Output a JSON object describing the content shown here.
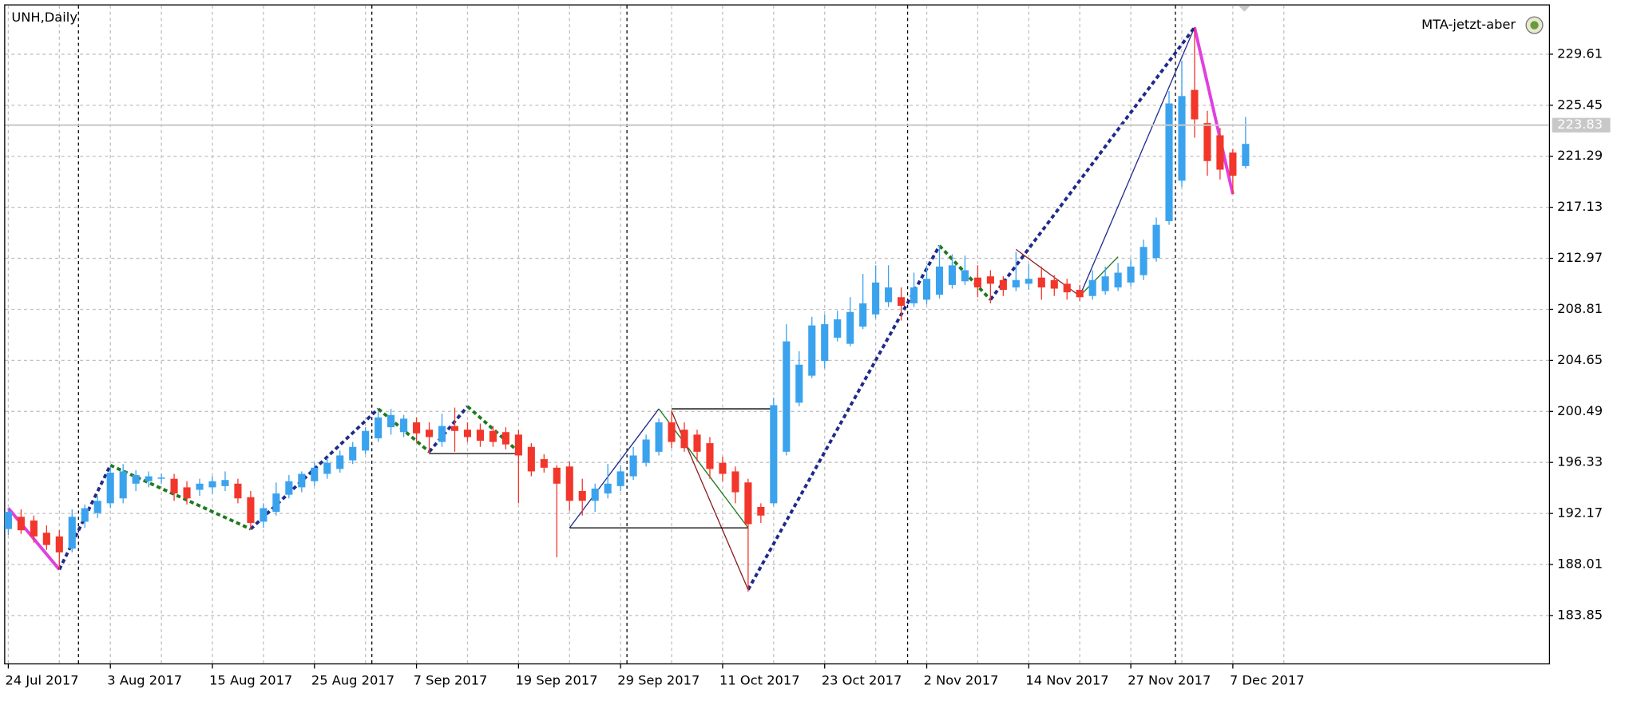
{
  "chart_data": {
    "type": "candlestick",
    "title": "UNH,Daily",
    "indicator": "MTA-jetzt-aber",
    "x": [
      "2017-07-24",
      "2017-07-25",
      "2017-07-26",
      "2017-07-27",
      "2017-07-28",
      "2017-07-31",
      "2017-08-01",
      "2017-08-02",
      "2017-08-03",
      "2017-08-04",
      "2017-08-07",
      "2017-08-08",
      "2017-08-09",
      "2017-08-10",
      "2017-08-11",
      "2017-08-14",
      "2017-08-15",
      "2017-08-16",
      "2017-08-17",
      "2017-08-18",
      "2017-08-21",
      "2017-08-22",
      "2017-08-23",
      "2017-08-24",
      "2017-08-25",
      "2017-08-28",
      "2017-08-29",
      "2017-08-30",
      "2017-08-31",
      "2017-09-01",
      "2017-09-05",
      "2017-09-06",
      "2017-09-07",
      "2017-09-08",
      "2017-09-11",
      "2017-09-12",
      "2017-09-13",
      "2017-09-14",
      "2017-09-15",
      "2017-09-18",
      "2017-09-19",
      "2017-09-20",
      "2017-09-21",
      "2017-09-22",
      "2017-09-25",
      "2017-09-26",
      "2017-09-27",
      "2017-09-28",
      "2017-09-29",
      "2017-10-02",
      "2017-10-03",
      "2017-10-04",
      "2017-10-05",
      "2017-10-06",
      "2017-10-09",
      "2017-10-10",
      "2017-10-11",
      "2017-10-12",
      "2017-10-13",
      "2017-10-16",
      "2017-10-17",
      "2017-10-18",
      "2017-10-19",
      "2017-10-20",
      "2017-10-23",
      "2017-10-24",
      "2017-10-25",
      "2017-10-26",
      "2017-10-27",
      "2017-10-30",
      "2017-10-31",
      "2017-11-01",
      "2017-11-02",
      "2017-11-03",
      "2017-11-06",
      "2017-11-07",
      "2017-11-08",
      "2017-11-09",
      "2017-11-10",
      "2017-11-13",
      "2017-11-14",
      "2017-11-15",
      "2017-11-16",
      "2017-11-17",
      "2017-11-20",
      "2017-11-21",
      "2017-11-22",
      "2017-11-24",
      "2017-11-27",
      "2017-11-28",
      "2017-11-29",
      "2017-11-30",
      "2017-12-01",
      "2017-12-04",
      "2017-12-05",
      "2017-12-06",
      "2017-12-07",
      "2017-12-08"
    ],
    "open": [
      190.9,
      191.9,
      191.6,
      190.6,
      190.3,
      189.3,
      191.5,
      192.2,
      193.0,
      193.4,
      194.6,
      194.8,
      195.0,
      195.0,
      194.3,
      194.1,
      194.3,
      194.4,
      194.6,
      193.5,
      191.5,
      192.3,
      193.7,
      194.3,
      194.8,
      195.4,
      195.8,
      196.5,
      197.3,
      198.3,
      199.2,
      198.8,
      199.6,
      199.0,
      198.0,
      199.3,
      199.0,
      199.0,
      198.9,
      198.8,
      198.6,
      197.6,
      196.6,
      195.9,
      196.0,
      194.0,
      193.2,
      193.8,
      194.4,
      195.2,
      196.3,
      197.2,
      199.6,
      199.0,
      198.6,
      197.9,
      196.3,
      195.6,
      194.7,
      192.7,
      193.0,
      197.2,
      201.2,
      203.4,
      204.6,
      206.5,
      206.0,
      207.4,
      208.4,
      209.4,
      209.8,
      209.3,
      209.6,
      210.0,
      210.8,
      211.1,
      211.4,
      211.5,
      211.2,
      210.6,
      210.9,
      211.4,
      211.2,
      210.9,
      210.4,
      209.9,
      210.3,
      210.6,
      211.0,
      211.6,
      213.0,
      216.0,
      219.3,
      226.7,
      224.0,
      223.0,
      221.6,
      220.5
    ],
    "high": [
      192.6,
      192.5,
      192.0,
      191.2,
      190.8,
      192.5,
      192.9,
      193.6,
      196.0,
      196.2,
      195.7,
      195.6,
      195.4,
      195.4,
      194.8,
      195.0,
      195.2,
      195.6,
      195.0,
      194.0,
      193.0,
      194.7,
      195.3,
      195.6,
      196.3,
      196.7,
      197.3,
      198.0,
      199.2,
      200.5,
      200.7,
      200.2,
      200.0,
      199.6,
      200.3,
      200.8,
      199.6,
      199.5,
      199.3,
      199.2,
      199.0,
      197.9,
      197.0,
      196.1,
      196.4,
      195.0,
      194.6,
      196.2,
      196.1,
      197.6,
      198.6,
      199.9,
      200.6,
      199.6,
      199.0,
      198.4,
      196.8,
      196.0,
      195.0,
      193.0,
      201.6,
      207.6,
      205.4,
      208.2,
      208.4,
      208.7,
      209.8,
      211.7,
      212.4,
      212.4,
      210.6,
      211.8,
      212.4,
      214.0,
      213.3,
      213.2,
      212.4,
      212.0,
      211.5,
      213.5,
      212.5,
      212.3,
      211.6,
      211.3,
      210.8,
      212.0,
      212.3,
      212.6,
      212.9,
      214.5,
      216.3,
      226.6,
      229.1,
      231.8,
      225.0,
      223.6,
      221.9,
      224.5
    ],
    "low": [
      190.4,
      190.5,
      189.8,
      189.2,
      187.6,
      189.0,
      191.0,
      191.8,
      192.6,
      193.0,
      194.0,
      194.3,
      194.6,
      193.2,
      192.9,
      193.6,
      193.8,
      194.0,
      193.0,
      190.9,
      191.0,
      192.0,
      193.4,
      193.9,
      194.4,
      195.0,
      195.5,
      196.2,
      197.0,
      198.0,
      198.6,
      198.4,
      198.0,
      197.0,
      197.6,
      197.2,
      198.0,
      197.6,
      197.6,
      197.4,
      193.0,
      195.2,
      195.5,
      188.6,
      192.4,
      192.0,
      192.3,
      193.4,
      194.0,
      194.9,
      196.0,
      196.9,
      197.5,
      197.2,
      196.4,
      195.0,
      194.8,
      193.0,
      185.8,
      191.4,
      192.8,
      196.9,
      200.9,
      203.2,
      204.0,
      206.2,
      205.8,
      207.2,
      208.1,
      209.0,
      207.9,
      209.0,
      209.2,
      209.7,
      210.5,
      210.8,
      209.8,
      209.3,
      209.9,
      210.3,
      210.4,
      209.6,
      209.9,
      209.6,
      209.5,
      209.6,
      210.0,
      210.3,
      210.7,
      211.2,
      212.7,
      215.7,
      218.8,
      222.8,
      219.7,
      219.4,
      218.2,
      220.3
    ],
    "close": [
      192.3,
      190.8,
      190.3,
      189.6,
      189.0,
      191.9,
      192.6,
      193.2,
      195.5,
      195.6,
      195.3,
      195.2,
      195.1,
      193.8,
      193.4,
      194.6,
      194.8,
      194.9,
      193.4,
      191.4,
      192.6,
      193.8,
      194.8,
      195.4,
      195.9,
      196.3,
      196.9,
      197.6,
      198.9,
      200.0,
      200.2,
      199.9,
      198.7,
      198.4,
      199.3,
      198.9,
      198.4,
      198.1,
      198.0,
      197.8,
      196.9,
      195.6,
      195.9,
      194.6,
      193.2,
      193.2,
      194.2,
      194.6,
      195.6,
      196.9,
      198.2,
      199.6,
      198.0,
      197.5,
      197.2,
      195.8,
      195.4,
      193.9,
      191.3,
      192.0,
      201.0,
      206.2,
      204.3,
      207.5,
      207.6,
      208.0,
      208.6,
      209.3,
      211.0,
      210.6,
      209.1,
      210.6,
      211.3,
      212.3,
      212.4,
      212.0,
      210.6,
      210.9,
      210.4,
      211.2,
      211.3,
      210.6,
      210.5,
      210.2,
      209.8,
      211.2,
      211.5,
      211.8,
      212.3,
      213.9,
      215.7,
      225.6,
      226.2,
      224.3,
      220.9,
      220.2,
      219.7,
      222.3
    ],
    "up_color": "#3ba3ee",
    "down_color": "#f2362b",
    "ylim": [
      179.95,
      233.59
    ],
    "yticks": [
      183.85,
      188.01,
      192.17,
      196.33,
      200.49,
      204.65,
      208.81,
      212.97,
      217.13,
      221.29,
      225.45,
      229.61
    ],
    "xticks": [
      {
        "value": "2017-07-24",
        "label": "24 Jul 2017"
      },
      {
        "value": "2017-08-03",
        "label": "3 Aug 2017"
      },
      {
        "value": "2017-08-15",
        "label": "15 Aug 2017"
      },
      {
        "value": "2017-08-25",
        "label": "25 Aug 2017"
      },
      {
        "value": "2017-09-07",
        "label": "7 Sep 2017"
      },
      {
        "value": "2017-09-19",
        "label": "19 Sep 2017"
      },
      {
        "value": "2017-09-29",
        "label": "29 Sep 2017"
      },
      {
        "value": "2017-10-11",
        "label": "11 Oct 2017"
      },
      {
        "value": "2017-10-23",
        "label": "23 Oct 2017"
      },
      {
        "value": "2017-11-02",
        "label": "2 Nov 2017"
      },
      {
        "value": "2017-11-14",
        "label": "14 Nov 2017"
      },
      {
        "value": "2017-11-27",
        "label": "27 Nov 2017"
      },
      {
        "value": "2017-12-07",
        "label": "7 Dec 2017"
      }
    ],
    "bid": 223.83,
    "bid_color": "#c8c8c8",
    "grid": true,
    "overlays": [
      {
        "color": "#e040e0",
        "width": 3,
        "dash": "none",
        "points": [
          [
            "2017-07-24",
            192.6
          ],
          [
            "2017-07-28",
            187.6
          ]
        ]
      },
      {
        "color": "#e040e0",
        "width": 3,
        "dash": "none",
        "points": [
          [
            "2017-12-04",
            231.8
          ],
          [
            "2017-12-07",
            218.2
          ]
        ]
      },
      {
        "color": "#1f2a8c",
        "width": 3,
        "dash": "4 3",
        "points": [
          [
            "2017-07-28",
            187.6
          ],
          [
            "2017-08-03",
            196.1
          ]
        ]
      },
      {
        "color": "#1e7a1e",
        "width": 3,
        "dash": "4 3",
        "points": [
          [
            "2017-08-03",
            196.1
          ],
          [
            "2017-08-18",
            190.9
          ]
        ]
      },
      {
        "color": "#1f2a8c",
        "width": 3,
        "dash": "4 3",
        "points": [
          [
            "2017-08-18",
            190.9
          ],
          [
            "2017-09-01",
            200.7
          ]
        ]
      },
      {
        "color": "#1e7a1e",
        "width": 3,
        "dash": "4 3",
        "points": [
          [
            "2017-09-01",
            200.7
          ],
          [
            "2017-09-08",
            197.2
          ]
        ]
      },
      {
        "color": "#1f2a8c",
        "width": 3,
        "dash": "4 3",
        "points": [
          [
            "2017-09-08",
            197.2
          ],
          [
            "2017-09-13",
            200.9
          ]
        ]
      },
      {
        "color": "#1e7a1e",
        "width": 3,
        "dash": "4 3",
        "points": [
          [
            "2017-09-13",
            200.9
          ],
          [
            "2017-09-19",
            197.2
          ]
        ]
      },
      {
        "color": "#1f2a8c",
        "width": 3,
        "dash": "4 3",
        "points": [
          [
            "2017-10-13",
            185.96
          ],
          [
            "2017-11-03",
            214.0
          ]
        ]
      },
      {
        "color": "#1e7a1e",
        "width": 3,
        "dash": "4 3",
        "points": [
          [
            "2017-11-03",
            214.0
          ],
          [
            "2017-11-09",
            209.6
          ]
        ]
      },
      {
        "color": "#1f2a8c",
        "width": 3,
        "dash": "4 3",
        "points": [
          [
            "2017-11-09",
            209.6
          ],
          [
            "2017-12-04",
            231.8
          ]
        ]
      },
      {
        "color": "#1f2a8c",
        "width": 1,
        "dash": "none",
        "points": [
          [
            "2017-09-25",
            191.0
          ],
          [
            "2017-10-04",
            200.7
          ]
        ]
      },
      {
        "color": "#1e7a1e",
        "width": 1,
        "dash": "none",
        "points": [
          [
            "2017-10-04",
            200.7
          ],
          [
            "2017-10-13",
            191.0
          ]
        ]
      },
      {
        "color": "#8b1a1a",
        "width": 1,
        "dash": "none",
        "points": [
          [
            "2017-10-05",
            200.5
          ],
          [
            "2017-10-13",
            185.96
          ]
        ]
      },
      {
        "color": "#000000",
        "width": 1,
        "dash": "none",
        "points": [
          [
            "2017-09-25",
            191.0
          ],
          [
            "2017-10-13",
            191.0
          ]
        ]
      },
      {
        "color": "#000000",
        "width": 1,
        "dash": "none",
        "points": [
          [
            "2017-10-05",
            200.7
          ],
          [
            "2017-10-17",
            200.7
          ]
        ]
      },
      {
        "color": "#000000",
        "width": 1,
        "dash": "none",
        "points": [
          [
            "2017-09-08",
            197.05
          ],
          [
            "2017-09-19",
            197.05
          ]
        ]
      },
      {
        "color": "#1f2a8c",
        "width": 1,
        "dash": "none",
        "points": [
          [
            "2017-11-20",
            209.9
          ],
          [
            "2017-12-04",
            231.8
          ]
        ]
      },
      {
        "color": "#8b1a1a",
        "width": 1,
        "dash": "none",
        "points": [
          [
            "2017-11-13",
            213.7
          ],
          [
            "2017-11-20",
            209.9
          ]
        ]
      },
      {
        "color": "#1e7a1e",
        "width": 1,
        "dash": "none",
        "points": [
          [
            "2017-11-20",
            209.9
          ],
          [
            "2017-11-24",
            213.1
          ]
        ]
      }
    ]
  }
}
